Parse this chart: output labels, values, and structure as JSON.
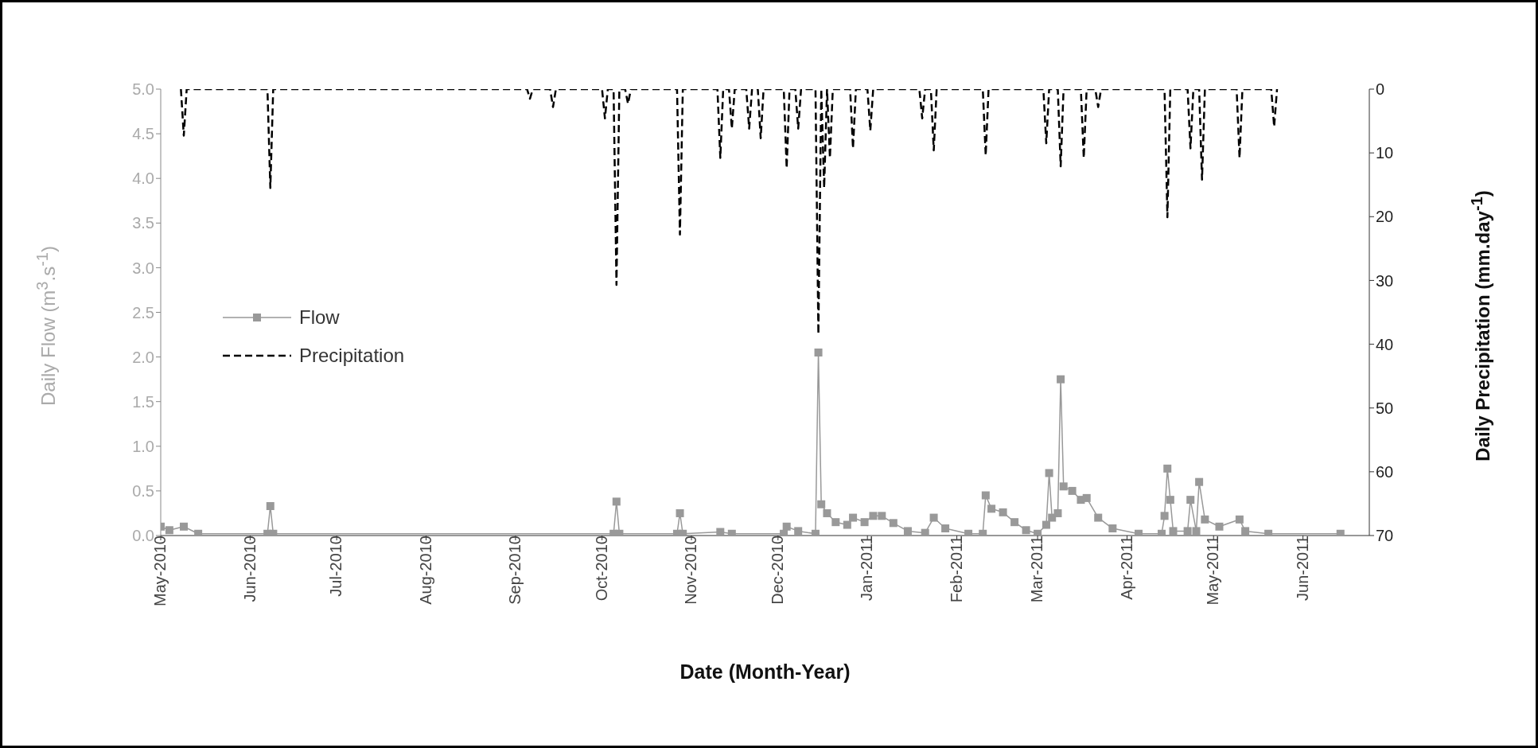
{
  "chart_data": {
    "type": "line",
    "xlabel": "Date (Month-Year)",
    "ylabel": "Daily Flow (m$^{3}$.s$^{-1}$)",
    "y2label": "Daily Precipitation (mm.day$^{-1}$)",
    "xlim": [
      "2010-05-01",
      "2011-06-24"
    ],
    "xticks": [
      {
        "value": "2010-05-01",
        "label": "May-2010"
      },
      {
        "value": "2010-06-01",
        "label": "Jun-2010"
      },
      {
        "value": "2010-07-01",
        "label": "Jul-2010"
      },
      {
        "value": "2010-08-01",
        "label": "Aug-2010"
      },
      {
        "value": "2010-09-01",
        "label": "Sep-2010"
      },
      {
        "value": "2010-10-01",
        "label": "Oct-2010"
      },
      {
        "value": "2010-11-01",
        "label": "Nov-2010"
      },
      {
        "value": "2010-12-01",
        "label": "Dec-2010"
      },
      {
        "value": "2011-01-01",
        "label": "Jan-2011"
      },
      {
        "value": "2011-02-01",
        "label": "Feb-2011"
      },
      {
        "value": "2011-03-01",
        "label": "Mar-2011"
      },
      {
        "value": "2011-04-01",
        "label": "Apr-2011"
      },
      {
        "value": "2011-05-01",
        "label": "May-2011"
      },
      {
        "value": "2011-06-01",
        "label": "Jun-2011"
      }
    ],
    "ylim": [
      0,
      5
    ],
    "yticks": [
      {
        "value": 0,
        "label": "0.0"
      },
      {
        "value": 0.5,
        "label": "0.5"
      },
      {
        "value": 1,
        "label": "1.0"
      },
      {
        "value": 1.5,
        "label": "1.5"
      },
      {
        "value": 2,
        "label": "2.0"
      },
      {
        "value": 2.5,
        "label": "2.5"
      },
      {
        "value": 3,
        "label": "3.0"
      },
      {
        "value": 3.5,
        "label": "3.5"
      },
      {
        "value": 4,
        "label": "4.0"
      },
      {
        "value": 4.5,
        "label": "4.5"
      },
      {
        "value": 5,
        "label": "5.0"
      }
    ],
    "y2lim": [
      70,
      0
    ],
    "y2ticks": [
      0,
      10,
      20,
      30,
      40,
      50,
      60,
      70
    ],
    "legend": "left",
    "series": [
      {
        "name": "Flow",
        "color": "#999999",
        "marker": "square",
        "line_style": "solid",
        "x": [
          "2010-05-01",
          "2010-05-04",
          "2010-05-09",
          "2010-05-14",
          "2010-06-07",
          "2010-06-08",
          "2010-06-09",
          "2010-10-05",
          "2010-10-06",
          "2010-10-07",
          "2010-10-27",
          "2010-10-28",
          "2010-10-29",
          "2010-11-11",
          "2010-11-15",
          "2010-12-03",
          "2010-12-04",
          "2010-12-08",
          "2010-12-14",
          "2010-12-15",
          "2010-12-16",
          "2010-12-18",
          "2010-12-21",
          "2010-12-25",
          "2010-12-27",
          "2010-12-31",
          "2011-01-03",
          "2011-01-06",
          "2011-01-10",
          "2011-01-15",
          "2011-01-21",
          "2011-01-24",
          "2011-01-28",
          "2011-02-05",
          "2011-02-10",
          "2011-02-11",
          "2011-02-13",
          "2011-02-17",
          "2011-02-21",
          "2011-02-25",
          "2011-03-01",
          "2011-03-04",
          "2011-03-05",
          "2011-03-06",
          "2011-03-08",
          "2011-03-09",
          "2011-03-10",
          "2011-03-13",
          "2011-03-16",
          "2011-03-18",
          "2011-03-22",
          "2011-03-27",
          "2011-04-05",
          "2011-04-13",
          "2011-04-14",
          "2011-04-15",
          "2011-04-16",
          "2011-04-17",
          "2011-04-22",
          "2011-04-23",
          "2011-04-25",
          "2011-04-26",
          "2011-04-28",
          "2011-05-03",
          "2011-05-10",
          "2011-05-12",
          "2011-05-20",
          "2011-06-14"
        ],
        "values": [
          0.1,
          0.06,
          0.1,
          0.02,
          0.02,
          0.33,
          0.02,
          0.02,
          0.38,
          0.02,
          0.02,
          0.25,
          0.02,
          0.04,
          0.02,
          0.02,
          0.1,
          0.05,
          0.02,
          2.05,
          0.35,
          0.25,
          0.15,
          0.12,
          0.2,
          0.15,
          0.22,
          0.22,
          0.14,
          0.05,
          0.03,
          0.2,
          0.08,
          0.02,
          0.02,
          0.45,
          0.3,
          0.26,
          0.15,
          0.06,
          0.02,
          0.12,
          0.7,
          0.2,
          0.25,
          1.75,
          0.55,
          0.5,
          0.4,
          0.42,
          0.2,
          0.08,
          0.02,
          0.02,
          0.22,
          0.75,
          0.4,
          0.05,
          0.05,
          0.4,
          0.05,
          0.6,
          0.18,
          0.1,
          0.18,
          0.05,
          0.02,
          0.02
        ]
      },
      {
        "name": "Precipitation",
        "color": "#000000",
        "marker": "none",
        "line_style": "dashed",
        "axis": "y2",
        "x": [
          "2010-05-08",
          "2010-05-09",
          "2010-05-10",
          "2010-06-07",
          "2010-06-08",
          "2010-06-09",
          "2010-09-05",
          "2010-09-06",
          "2010-09-07",
          "2010-09-13",
          "2010-09-14",
          "2010-09-15",
          "2010-10-01",
          "2010-10-02",
          "2010-10-03",
          "2010-10-05",
          "2010-10-06",
          "2010-10-07",
          "2010-10-09",
          "2010-10-10",
          "2010-10-11",
          "2010-10-27",
          "2010-10-28",
          "2010-10-29",
          "2010-11-10",
          "2010-11-11",
          "2010-11-12",
          "2010-11-14",
          "2010-11-15",
          "2010-11-16",
          "2010-11-20",
          "2010-11-21",
          "2010-11-22",
          "2010-11-24",
          "2010-11-25",
          "2010-11-26",
          "2010-12-03",
          "2010-12-04",
          "2010-12-05",
          "2010-12-07",
          "2010-12-08",
          "2010-12-09",
          "2010-12-14",
          "2010-12-15",
          "2010-12-16",
          "2010-12-17",
          "2010-12-18",
          "2010-12-19",
          "2010-12-20",
          "2010-12-26",
          "2010-12-27",
          "2010-12-28",
          "2011-01-01",
          "2011-01-02",
          "2011-01-03",
          "2011-01-19",
          "2011-01-20",
          "2011-01-21",
          "2011-01-23",
          "2011-01-24",
          "2011-01-25",
          "2011-02-10",
          "2011-02-11",
          "2011-02-12",
          "2011-03-03",
          "2011-03-04",
          "2011-03-05",
          "2011-03-08",
          "2011-03-09",
          "2011-03-10",
          "2011-03-16",
          "2011-03-17",
          "2011-03-18",
          "2011-03-21",
          "2011-03-22",
          "2011-03-23",
          "2011-04-14",
          "2011-04-15",
          "2011-04-16",
          "2011-04-22",
          "2011-04-23",
          "2011-04-24",
          "2011-04-26",
          "2011-04-27",
          "2011-04-28",
          "2011-05-09",
          "2011-05-10",
          "2011-05-11",
          "2011-05-21",
          "2011-05-22",
          "2011-05-23"
        ],
        "values": [
          0,
          7.3,
          0,
          0,
          15.5,
          0,
          0,
          1.5,
          0,
          0,
          2.8,
          0,
          0,
          4.6,
          0,
          0,
          30.7,
          0,
          0,
          2.3,
          0,
          0,
          22.8,
          0,
          0,
          10.8,
          0,
          0,
          6.2,
          0,
          0,
          6.2,
          0,
          0,
          7.7,
          0,
          0,
          12.4,
          0,
          0,
          6.2,
          0,
          0,
          38.4,
          0,
          15.5,
          0,
          10.8,
          0,
          0,
          9.3,
          0,
          0,
          6.5,
          0,
          0,
          4.6,
          0,
          0,
          9.6,
          0,
          0,
          10.4,
          0,
          0,
          8.5,
          0,
          0,
          12.1,
          0,
          0,
          10.8,
          0,
          0,
          2.8,
          0,
          0,
          20.1,
          0,
          0,
          9.3,
          0,
          0,
          14.2,
          0,
          0,
          10.8,
          0,
          0,
          5.9,
          0
        ]
      }
    ]
  }
}
